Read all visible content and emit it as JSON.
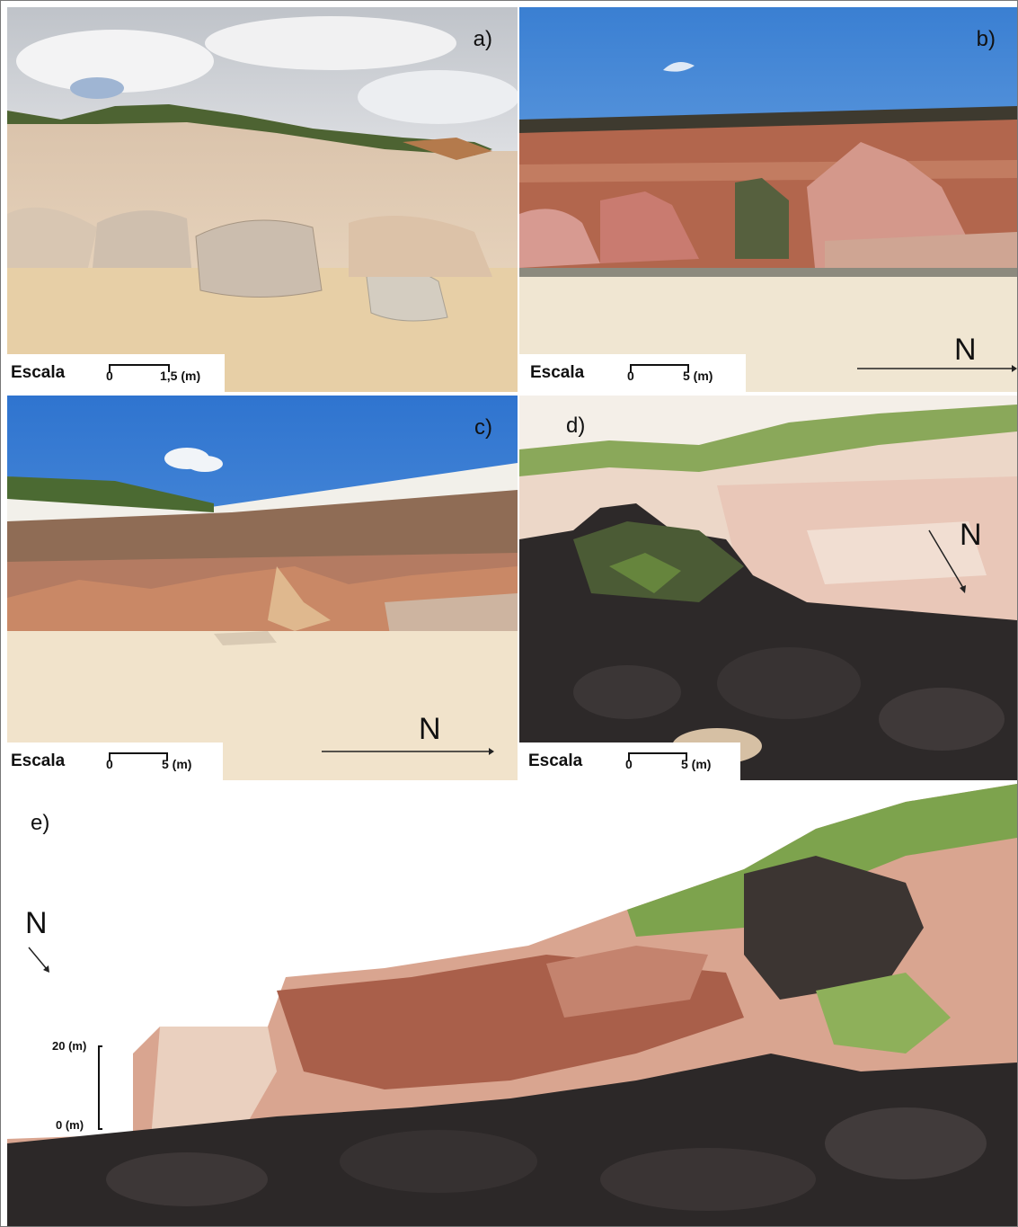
{
  "panels": {
    "a": {
      "label": "a)",
      "scale_word": "Escala",
      "scale_zero": "0",
      "scale_value": "1,5 (m)"
    },
    "b": {
      "label": "b)",
      "scale_word": "Escala",
      "scale_zero": "0",
      "scale_value": "5 (m)",
      "north": "N"
    },
    "c": {
      "label": "c)",
      "scale_word": "Escala",
      "scale_zero": "0",
      "scale_value": "5 (m)",
      "north": "N"
    },
    "d": {
      "label": "d)",
      "scale_word": "Escala",
      "scale_zero": "0",
      "scale_value": "5 (m)",
      "north": "N"
    },
    "e": {
      "label": "e)",
      "north": "N",
      "vscale_top": "20 (m)",
      "vscale_bottom": "0 (m)"
    }
  },
  "colors": {
    "sky_blue": "#3f86d6",
    "sand": "#efe2c9",
    "red_cliff": "#b86a52",
    "dark_rock": "#2a2626",
    "vegetation": "#7ea14a"
  }
}
